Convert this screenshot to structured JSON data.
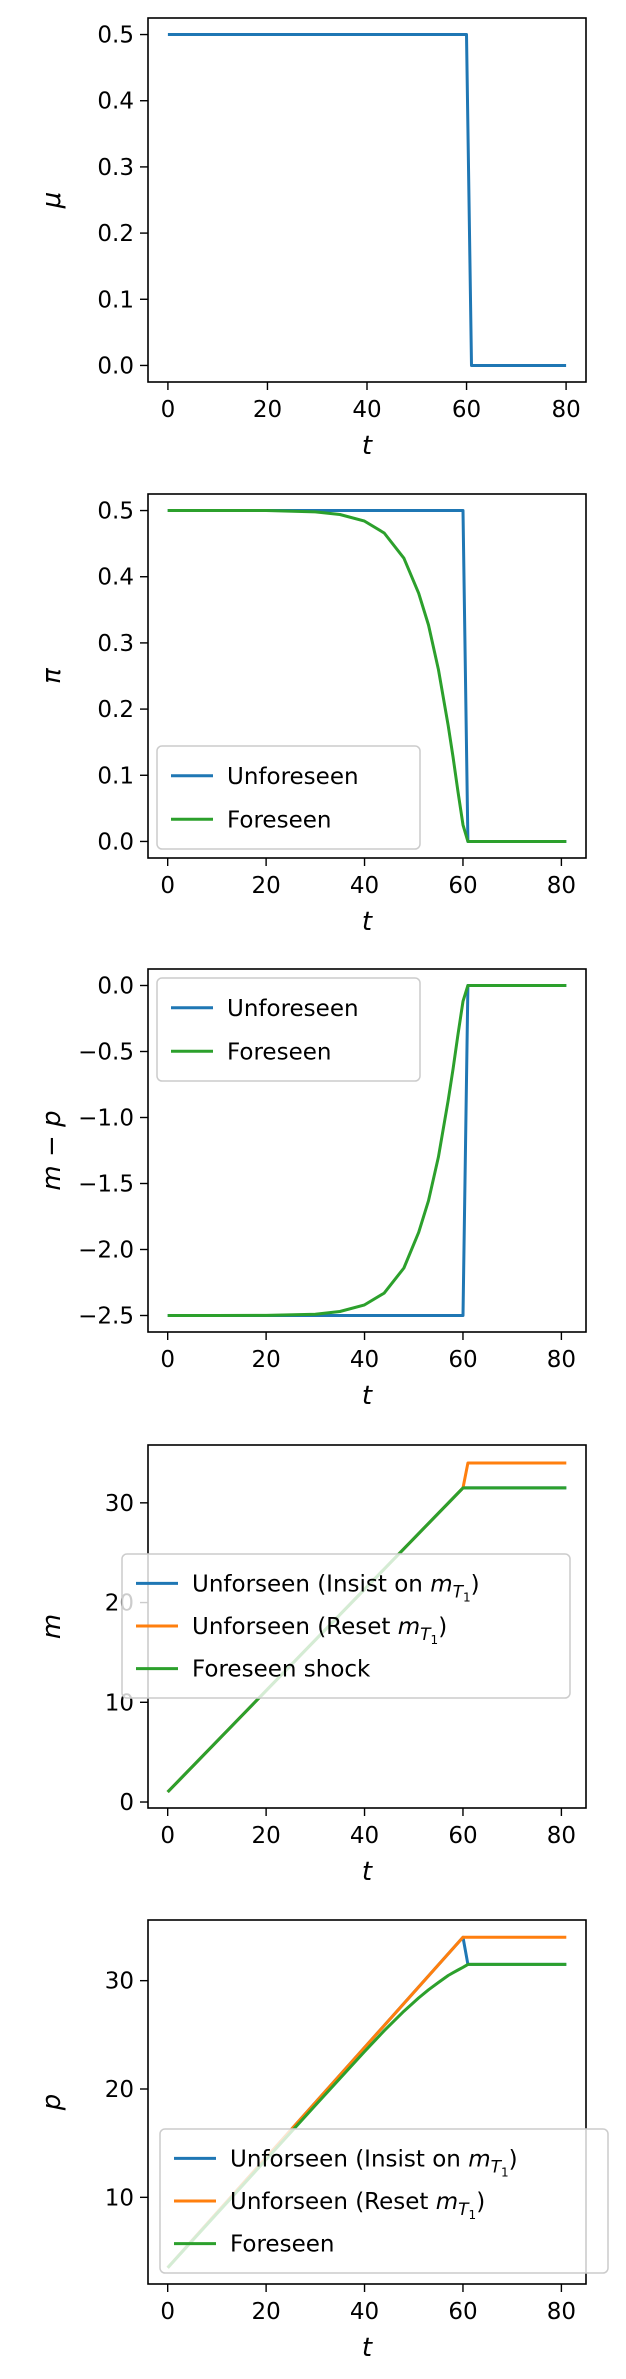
{
  "chart_data": [
    {
      "type": "line",
      "xlabel": "t",
      "ylabel": "μ",
      "xlim": [
        -4,
        84
      ],
      "ylim": [
        -0.025,
        0.525
      ],
      "xticks": [
        0,
        20,
        40,
        60,
        80
      ],
      "yticks": [
        0.0,
        0.1,
        0.2,
        0.3,
        0.4,
        0.5
      ],
      "ytick_labels": [
        "0.0",
        "0.1",
        "0.2",
        "0.3",
        "0.4",
        "0.5"
      ],
      "legend": null,
      "series": [
        {
          "color": "#1f77b4",
          "x": [
            0,
            60,
            61,
            80
          ],
          "y": [
            0.5,
            0.5,
            0.0,
            0.0
          ]
        }
      ]
    },
    {
      "type": "line",
      "xlabel": "t",
      "ylabel": "π",
      "xlim": [
        -4,
        85
      ],
      "ylim": [
        -0.025,
        0.525
      ],
      "xticks": [
        0,
        20,
        40,
        60,
        80
      ],
      "yticks": [
        0.0,
        0.1,
        0.2,
        0.3,
        0.4,
        0.5
      ],
      "ytick_labels": [
        "0.0",
        "0.1",
        "0.2",
        "0.3",
        "0.4",
        "0.5"
      ],
      "legend": "lower-left",
      "series": [
        {
          "name": "Unforeseen",
          "color": "#1f77b4",
          "x": [
            0,
            60,
            61,
            81
          ],
          "y": [
            0.5,
            0.5,
            0.0,
            0.0
          ]
        },
        {
          "name": "Foreseen",
          "color": "#2ca02c",
          "x": [
            0,
            10,
            20,
            30,
            35,
            40,
            44,
            48,
            51,
            53,
            55,
            57,
            58,
            59,
            60,
            61,
            81
          ],
          "y": [
            0.5,
            0.5,
            0.5,
            0.498,
            0.494,
            0.484,
            0.466,
            0.428,
            0.375,
            0.327,
            0.26,
            0.175,
            0.127,
            0.075,
            0.025,
            0.0,
            0.0
          ]
        }
      ]
    },
    {
      "type": "line",
      "xlabel": "t",
      "ylabel": "m − p",
      "xlim": [
        -4,
        85
      ],
      "ylim": [
        -2.625,
        0.125
      ],
      "xticks": [
        0,
        20,
        40,
        60,
        80
      ],
      "yticks": [
        0.0,
        -0.5,
        -1.0,
        -1.5,
        -2.0,
        -2.5
      ],
      "ytick_labels": [
        "0.0",
        "−0.5",
        "−1.0",
        "−1.5",
        "−2.0",
        "−2.5"
      ],
      "legend": "upper-left",
      "series": [
        {
          "name": "Unforeseen",
          "color": "#1f77b4",
          "x": [
            0,
            60,
            61,
            81
          ],
          "y": [
            -2.5,
            -2.5,
            0.0,
            0.0
          ]
        },
        {
          "name": "Foreseen",
          "color": "#2ca02c",
          "x": [
            0,
            10,
            20,
            30,
            35,
            40,
            44,
            48,
            51,
            53,
            55,
            57,
            58,
            59,
            60,
            61,
            81
          ],
          "y": [
            -2.5,
            -2.5,
            -2.499,
            -2.49,
            -2.47,
            -2.42,
            -2.33,
            -2.14,
            -1.87,
            -1.63,
            -1.3,
            -0.87,
            -0.63,
            -0.37,
            -0.12,
            0.0,
            0.0
          ]
        }
      ]
    },
    {
      "type": "line",
      "xlabel": "t",
      "ylabel": "m",
      "xlim": [
        -4,
        85
      ],
      "ylim": [
        -0.6,
        35.8
      ],
      "xticks": [
        0,
        20,
        40,
        60,
        80
      ],
      "yticks": [
        0,
        10,
        20,
        30
      ],
      "ytick_labels": [
        "0",
        "10",
        "20",
        "30"
      ],
      "legend": "center-left",
      "series": [
        {
          "name": "Unforseen (Insist on m_T1)",
          "color": "#1f77b4",
          "x": [
            0,
            60,
            61,
            81
          ],
          "y": [
            1.0,
            31.5,
            31.5,
            31.5
          ]
        },
        {
          "name": "Unforseen (Reset m_T1)",
          "color": "#ff7f0e",
          "x": [
            0,
            60,
            61,
            81
          ],
          "y": [
            1.0,
            31.5,
            34.0,
            34.0
          ]
        },
        {
          "name": "Foreseen shock",
          "color": "#2ca02c",
          "x": [
            0,
            60,
            61,
            81
          ],
          "y": [
            1.0,
            31.5,
            31.5,
            31.5
          ]
        }
      ]
    },
    {
      "type": "line",
      "xlabel": "t",
      "ylabel": "p",
      "xlim": [
        -4,
        85
      ],
      "ylim": [
        2.0,
        35.6
      ],
      "xticks": [
        0,
        20,
        40,
        60,
        80
      ],
      "yticks": [
        10,
        20,
        30
      ],
      "ytick_labels": [
        "10",
        "20",
        "30"
      ],
      "legend": "lower-center",
      "series": [
        {
          "name": "Unforseen (Insist on m_T1)",
          "color": "#1f77b4",
          "x": [
            0,
            60,
            61,
            81
          ],
          "y": [
            3.5,
            34.0,
            31.5,
            31.5
          ]
        },
        {
          "name": "Unforseen (Reset m_T1)",
          "color": "#ff7f0e",
          "x": [
            0,
            60,
            61,
            81
          ],
          "y": [
            3.5,
            34.0,
            34.0,
            34.0
          ]
        },
        {
          "name": "Foreseen",
          "color": "#2ca02c",
          "x": [
            0,
            30,
            40,
            44,
            48,
            51,
            53,
            55,
            57,
            58,
            59,
            60,
            61,
            81
          ],
          "y": [
            3.5,
            18.49,
            23.45,
            25.38,
            27.18,
            28.41,
            29.16,
            29.83,
            30.48,
            30.74,
            30.98,
            31.23,
            31.5,
            31.5
          ]
        }
      ]
    }
  ]
}
